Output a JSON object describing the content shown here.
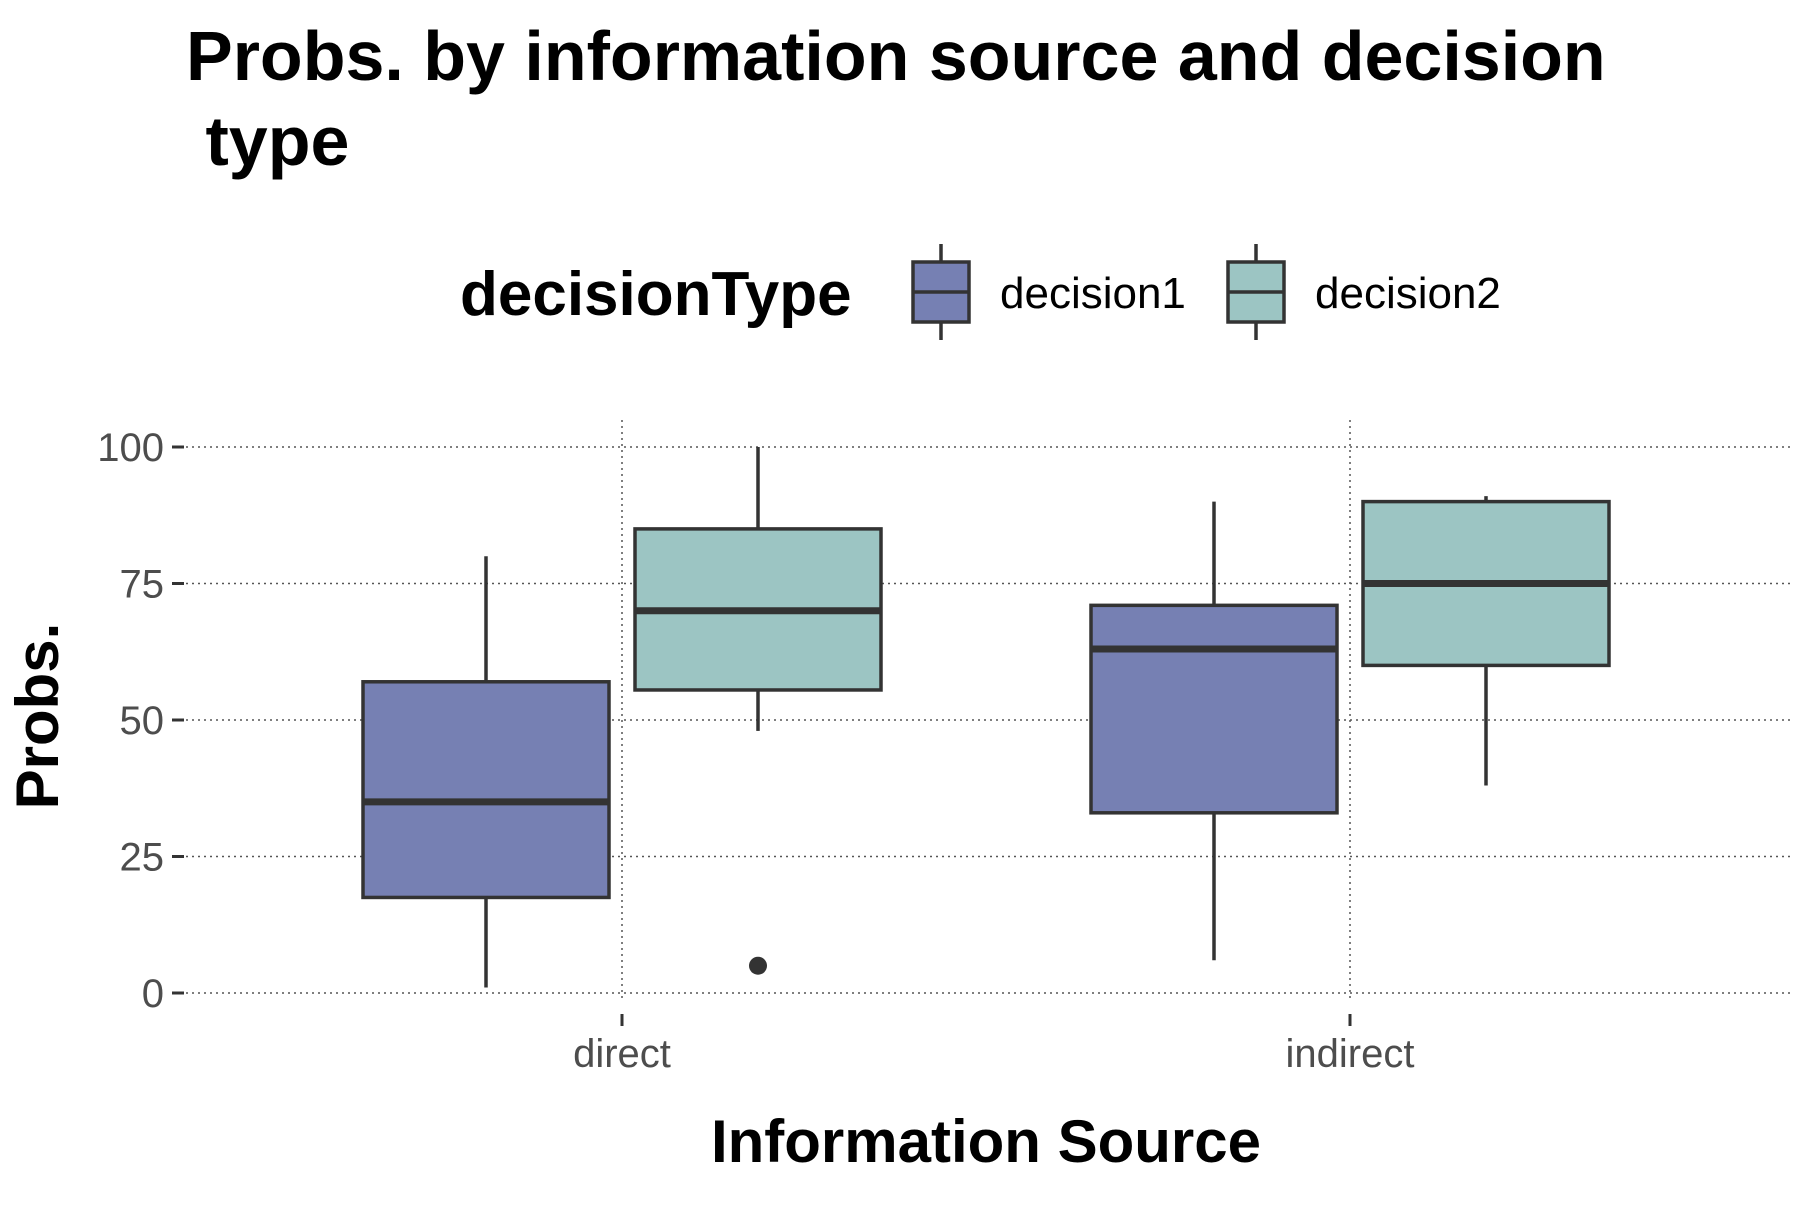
{
  "colors": {
    "decision1": "#7680b3",
    "decision2": "#9cc5c3",
    "box_outline": "#333333",
    "grid": "#555555",
    "tick": "#333333",
    "tick_label": "#4d4d4d",
    "outlier": "#333333"
  },
  "chart_data": {
    "type": "box",
    "title_lines": [
      "Probs. by information source and decision",
      " type"
    ],
    "xlabel": "Information Source",
    "ylabel": "Probs.",
    "ylim": [
      -2,
      104
    ],
    "y_ticks": [
      0,
      25,
      50,
      75,
      100
    ],
    "y_tick_labels": [
      "0",
      "25",
      "50",
      "75",
      "100"
    ],
    "categories": [
      "direct",
      "indirect"
    ],
    "legend": {
      "title": "decisionType",
      "position": "top",
      "entries": [
        "decision1",
        "decision2"
      ]
    },
    "grid": {
      "major": true,
      "style": "dotted"
    },
    "series": [
      {
        "name": "decision1",
        "boxes": [
          {
            "category": "direct",
            "whisker_low": 1,
            "q1": 17.5,
            "median": 35,
            "q3": 57,
            "whisker_high": 80,
            "outliers": []
          },
          {
            "category": "indirect",
            "whisker_low": 6,
            "q1": 33,
            "median": 63,
            "q3": 71,
            "whisker_high": 90,
            "outliers": []
          }
        ]
      },
      {
        "name": "decision2",
        "boxes": [
          {
            "category": "direct",
            "whisker_low": 48,
            "q1": 55.5,
            "median": 70,
            "q3": 85,
            "whisker_high": 100,
            "outliers": [
              5
            ]
          },
          {
            "category": "indirect",
            "whisker_low": 38,
            "q1": 60,
            "median": 75,
            "q3": 90,
            "whisker_high": 91,
            "outliers": []
          }
        ]
      }
    ]
  }
}
